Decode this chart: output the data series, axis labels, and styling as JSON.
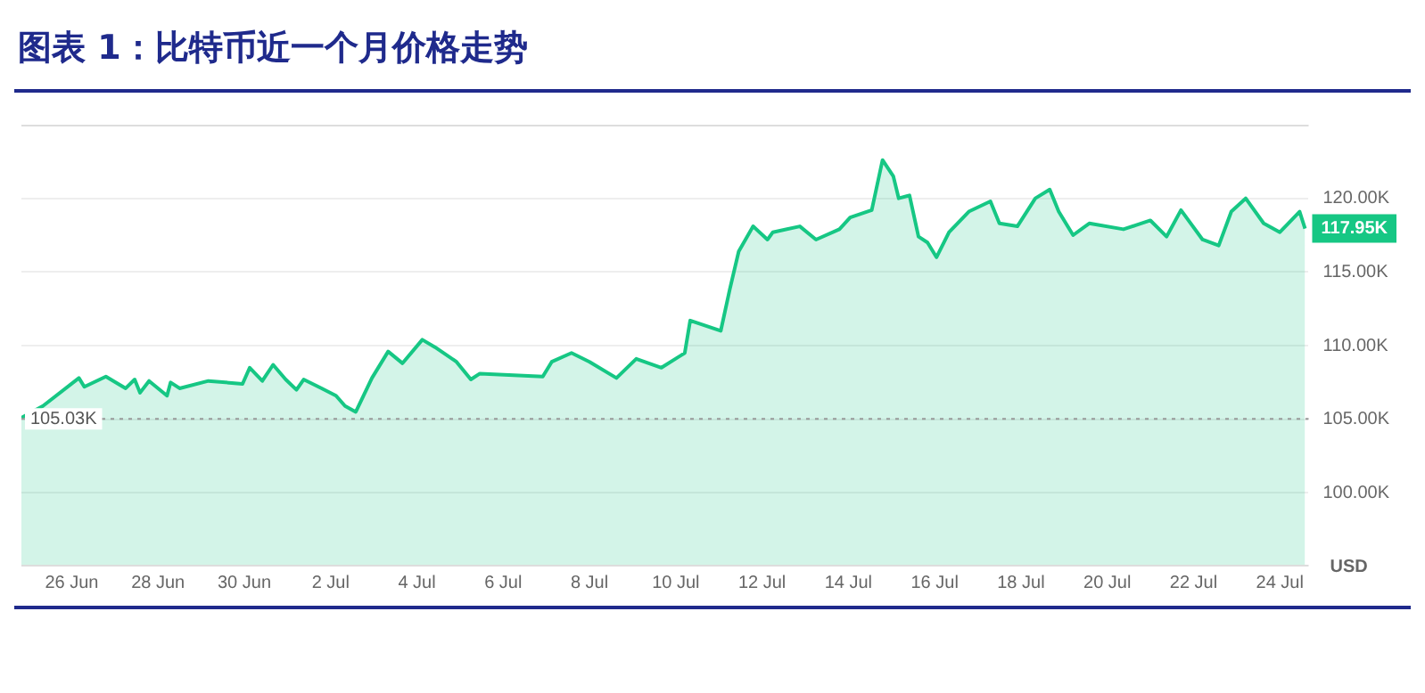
{
  "chart_data": {
    "type": "area",
    "title": "图表 1：比特币近一个月价格走势",
    "ylabel": "USD",
    "x": [
      "--06-24T20:00",
      "--06-25T08:00",
      "--06-26T04:00",
      "--06-26T07:00",
      "--06-26T19:00",
      "--06-27T06:00",
      "--06-27T11:00",
      "--06-27T14:00",
      "--06-27T19:00",
      "--06-28T05:00",
      "--06-28T07:00",
      "--06-28T12:00",
      "--06-29T04:00",
      "--06-29T23:00",
      "--06-30T03:00",
      "--06-30T10:00",
      "--06-30T16:00",
      "--06-30T23:00",
      "--07-01T05:00",
      "--07-01T09:00",
      "--07-01T19:00",
      "--07-02T03:00",
      "--07-02T08:00",
      "--07-02T14:00",
      "--07-02T23:00",
      "--07-03T08:00",
      "--07-03T16:00",
      "--07-04T03:00",
      "--07-04T10:00",
      "--07-04T22:00",
      "--07-05T06:00",
      "--07-05T11:00",
      "--07-06T22:00",
      "--07-07T03:00",
      "--07-07T14:00",
      "--07-08T00:00",
      "--07-08T15:00",
      "--07-09T02:00",
      "--07-09T16:00",
      "--07-10T05:00",
      "--07-10T08:00",
      "--07-11T01:00",
      "--07-11T06:00",
      "--07-11T11:00",
      "--07-11T19:00",
      "--07-12T03:00",
      "--07-12T06:00",
      "--07-12T21:00",
      "--07-13T06:00",
      "--07-13T19:00",
      "--07-14T01:00",
      "--07-14T13:00",
      "--07-14T19:00",
      "--07-15T01:00",
      "--07-15T04:00",
      "--07-15T10:00",
      "--07-15T15:00",
      "--07-15T20:00",
      "--07-16T01:00",
      "--07-16T08:00",
      "--07-16T19:00",
      "--07-17T07:00",
      "--07-17T12:00",
      "--07-17T22:00",
      "--07-18T08:00",
      "--07-18T16:00",
      "--07-18T21:00",
      "--07-19T05:00",
      "--07-19T14:00",
      "--07-20T09:00",
      "--07-21T00:00",
      "--07-21T09:00",
      "--07-21T17:00",
      "--07-22T05:00",
      "--07-22T14:00",
      "--07-22T21:00",
      "--07-23T05:00",
      "--07-23T15:00",
      "--07-24T00:00",
      "--07-24T11:00",
      "--07-24T14:00"
    ],
    "series": [
      {
        "color": "#16c784",
        "values": [
          105100,
          105900,
          107800,
          107200,
          107900,
          107100,
          107700,
          106800,
          107600,
          106600,
          107500,
          107100,
          107600,
          107400,
          108500,
          107600,
          108700,
          107700,
          107000,
          107700,
          107100,
          106600,
          105900,
          105500,
          107800,
          109600,
          108800,
          110400,
          109900,
          108900,
          107700,
          108100,
          107900,
          108900,
          109500,
          108900,
          107800,
          109100,
          108500,
          109500,
          111700,
          111000,
          113800,
          116400,
          118100,
          117200,
          117700,
          118100,
          117200,
          117900,
          118700,
          119200,
          122600,
          121500,
          120000,
          120200,
          117400,
          117000,
          116000,
          117700,
          119100,
          119800,
          118300,
          118100,
          120000,
          120600,
          119100,
          117500,
          118300,
          117900,
          118500,
          117400,
          119200,
          117200,
          116800,
          119100,
          120000,
          118300,
          117700,
          119100,
          117950
        ]
      }
    ],
    "xlim": [
      "--06-24T20:00",
      "--07-24T16:00"
    ],
    "xticks": [
      {
        "value": "--06-26",
        "label": "26 Jun"
      },
      {
        "value": "--06-28",
        "label": "28 Jun"
      },
      {
        "value": "--06-30",
        "label": "30 Jun"
      },
      {
        "value": "--07-02",
        "label": "2 Jul"
      },
      {
        "value": "--07-04",
        "label": "4 Jul"
      },
      {
        "value": "--07-06",
        "label": "6 Jul"
      },
      {
        "value": "--07-08",
        "label": "8 Jul"
      },
      {
        "value": "--07-10",
        "label": "10 Jul"
      },
      {
        "value": "--07-12",
        "label": "12 Jul"
      },
      {
        "value": "--07-14",
        "label": "14 Jul"
      },
      {
        "value": "--07-16",
        "label": "16 Jul"
      },
      {
        "value": "--07-18",
        "label": "18 Jul"
      },
      {
        "value": "--07-20",
        "label": "20 Jul"
      },
      {
        "value": "--07-22",
        "label": "22 Jul"
      },
      {
        "value": "--07-24",
        "label": "24 Jul"
      }
    ],
    "ylim": [
      95000,
      125000
    ],
    "yticks": [
      {
        "value": 100000,
        "label": "100.00K"
      },
      {
        "value": 105000,
        "label": "105.00K"
      },
      {
        "value": 110000,
        "label": "110.00K"
      },
      {
        "value": 115000,
        "label": "115.00K"
      },
      {
        "value": 120000,
        "label": "120.00K"
      }
    ],
    "ref_lines": [
      {
        "axis": "y",
        "value": 105030,
        "label": "105.03K",
        "color": "#999999",
        "line_style": "dotted"
      }
    ],
    "annotations": [
      {
        "text": "117.95K",
        "x": "--07-24T14:00",
        "y": 117950
      }
    ],
    "grid": "y",
    "legend": false,
    "marker": "none",
    "line_style": "solid"
  }
}
